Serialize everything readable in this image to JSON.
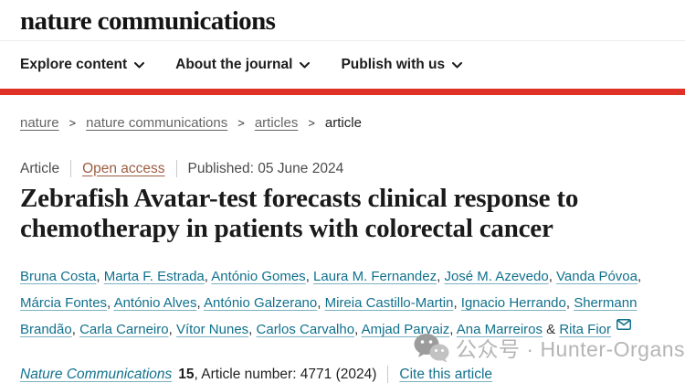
{
  "header": {
    "logo": "nature communications",
    "nav_items": [
      {
        "label": "Explore content"
      },
      {
        "label": "About the journal"
      },
      {
        "label": "Publish with us"
      }
    ]
  },
  "breadcrumb": {
    "separator": ">",
    "items": [
      {
        "label": "nature",
        "current": false
      },
      {
        "label": "nature communications",
        "current": false
      },
      {
        "label": "articles",
        "current": false
      },
      {
        "label": "article",
        "current": true
      }
    ]
  },
  "article_meta": {
    "type": "Article",
    "access": "Open access",
    "published": "Published: 05 June 2024"
  },
  "title": "Zebrafish Avatar-test forecasts clinical response to chemotherapy in patients with colorectal cancer",
  "authors": {
    "names": [
      "Bruna Costa",
      "Marta F. Estrada",
      "António Gomes",
      "Laura M. Fernandez",
      "José M. Azevedo",
      "Vanda Póvoa",
      "Márcia Fontes",
      "António Alves",
      "António Galzerano",
      "Mireia Castillo-Martin",
      "Ignacio Herrando",
      "Shermann Brandão",
      "Carla Carneiro",
      "Vítor Nunes",
      "Carlos Carvalho",
      "Amjad Parvaiz",
      "Ana Marreiros",
      "Rita Fior"
    ],
    "conjunction": "&",
    "corresponding_author": "Rita Fior"
  },
  "citation": {
    "journal": "Nature Communications",
    "volume": "15",
    "rest": ", Article number: 4771 (2024)",
    "cite_label": "Cite this article"
  },
  "watermark": {
    "label": "公众号 · Hunter-Organs"
  },
  "colors": {
    "accent_red": "#e03127",
    "link_teal": "#11718d",
    "open_access_rust": "#9c5e42",
    "watermark_gray": "#b5b5b5"
  }
}
